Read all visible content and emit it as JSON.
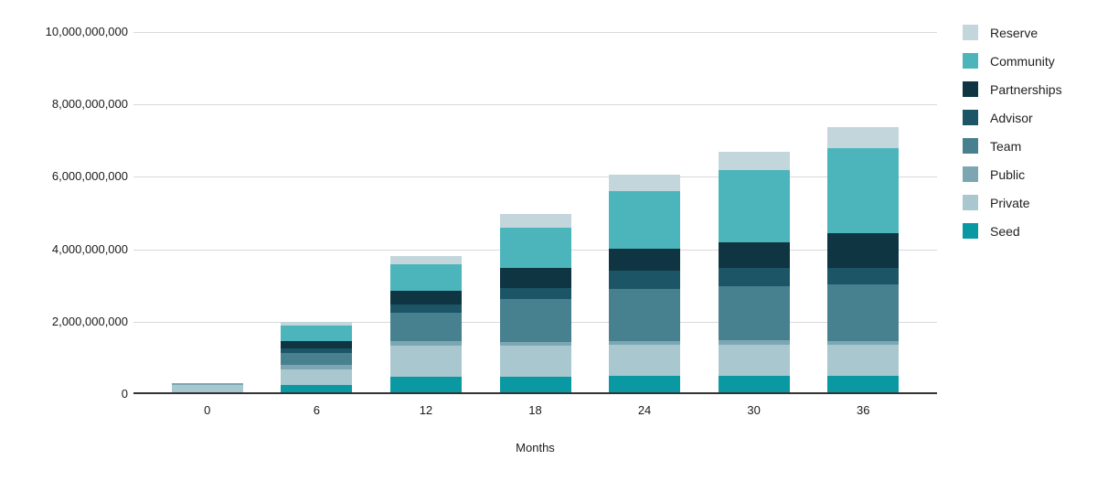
{
  "chart_data": {
    "type": "bar",
    "stacked": true,
    "title": "",
    "xlabel": "Months",
    "ylabel": "",
    "grid": true,
    "gridline_color": "#d9d9d9",
    "axis_color": "#333333",
    "background_color": "#ffffff",
    "categories": [
      "0",
      "6",
      "12",
      "18",
      "24",
      "30",
      "36"
    ],
    "series": [
      {
        "name": "Seed",
        "color": "#0a99a2",
        "values": [
          0,
          250000000,
          475000000,
          475000000,
          500000000,
          500000000,
          500000000
        ]
      },
      {
        "name": "Private",
        "color": "#a9c7ce",
        "values": [
          250000000,
          425000000,
          875000000,
          875000000,
          875000000,
          875000000,
          875000000
        ]
      },
      {
        "name": "Public",
        "color": "#7ca7b2",
        "values": [
          50000000,
          140000000,
          125000000,
          100000000,
          100000000,
          125000000,
          100000000
        ]
      },
      {
        "name": "Team",
        "color": "#47808f",
        "values": [
          0,
          330000000,
          765000000,
          1175000000,
          1425000000,
          1475000000,
          1550000000
        ]
      },
      {
        "name": "Advisor",
        "color": "#1b5566",
        "values": [
          0,
          125000000,
          240000000,
          300000000,
          500000000,
          500000000,
          460000000
        ]
      },
      {
        "name": "Partnerships",
        "color": "#0e3541",
        "values": [
          0,
          200000000,
          375000000,
          550000000,
          625000000,
          715000000,
          950000000
        ]
      },
      {
        "name": "Community",
        "color": "#4cb5bc",
        "values": [
          0,
          430000000,
          730000000,
          1125000000,
          1575000000,
          2000000000,
          2360000000
        ]
      },
      {
        "name": "Reserve",
        "color": "#c3d6db",
        "values": [
          0,
          100000000,
          225000000,
          375000000,
          465000000,
          510000000,
          590000000
        ]
      }
    ],
    "y_axis": {
      "min": 0,
      "max": 10000000000,
      "ticks": [
        {
          "value": 10000000000,
          "label": "10,000,000,000"
        },
        {
          "value": 8000000000,
          "label": "8,000,000,000"
        },
        {
          "value": 6000000000,
          "label": "6,000,000,000"
        },
        {
          "value": 4000000000,
          "label": "4,000,000,000"
        },
        {
          "value": 2000000000,
          "label": "2,000,000,000"
        },
        {
          "value": 0,
          "label": "0"
        }
      ]
    },
    "legend": {
      "position": "right",
      "items_top_to_bottom": [
        "Reserve",
        "Community",
        "Partnerships",
        "Advisor",
        "Team",
        "Public",
        "Private",
        "Seed"
      ]
    }
  }
}
